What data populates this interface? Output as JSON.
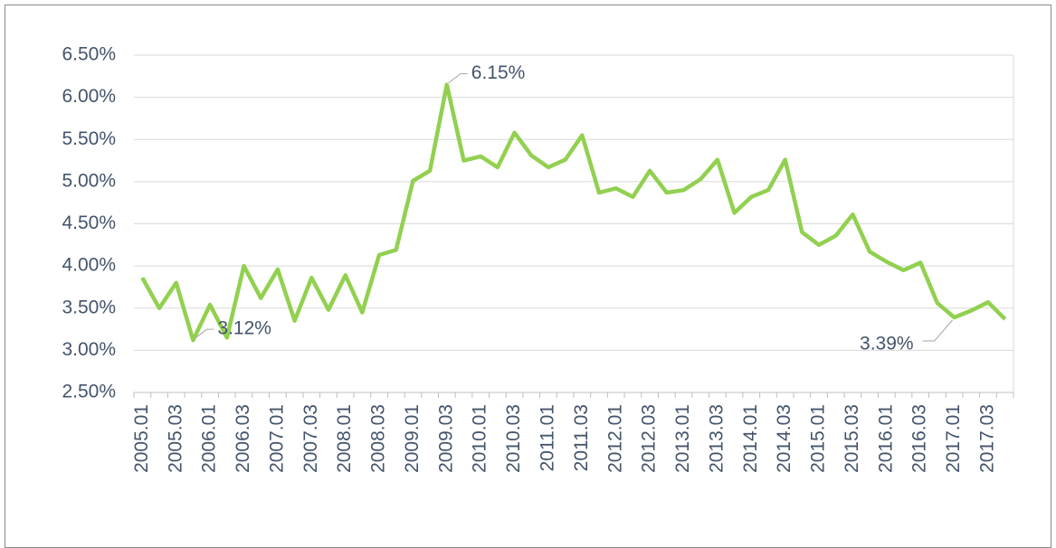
{
  "chart_data": {
    "type": "line",
    "categories": [
      "2005.01",
      null,
      "2005.03",
      null,
      "2006.01",
      null,
      "2006.03",
      null,
      "2007.01",
      null,
      "2007.03",
      null,
      "2008.01",
      null,
      "2008.03",
      null,
      "2009.01",
      null,
      "2009.03",
      null,
      "2010.01",
      null,
      "2010.03",
      null,
      "2011.01",
      null,
      "2011.03",
      null,
      "2012.01",
      null,
      "2012.03",
      null,
      "2013.01",
      null,
      "2013.03",
      null,
      "2014.01",
      null,
      "2014.03",
      null,
      "2015.01",
      null,
      "2015.03",
      null,
      "2016.01",
      null,
      "2016.03",
      null,
      "2017.01",
      null,
      "2017.03",
      null
    ],
    "values": [
      3.86,
      3.5,
      3.8,
      3.12,
      3.54,
      3.15,
      4.0,
      3.62,
      3.96,
      3.35,
      3.86,
      3.48,
      3.89,
      3.45,
      4.13,
      4.19,
      5.01,
      5.13,
      6.15,
      5.25,
      5.3,
      5.17,
      5.58,
      5.31,
      5.17,
      5.26,
      5.55,
      4.87,
      4.92,
      4.82,
      5.13,
      4.87,
      4.9,
      5.03,
      5.26,
      4.63,
      4.82,
      4.9,
      5.26,
      4.4,
      4.25,
      4.36,
      4.61,
      4.17,
      4.05,
      3.95,
      4.04,
      3.56,
      3.39,
      3.47,
      3.57,
      3.37
    ],
    "value_labels": [
      null,
      null,
      null,
      "3.12%",
      null,
      null,
      null,
      null,
      null,
      null,
      null,
      null,
      null,
      null,
      null,
      null,
      null,
      null,
      "6.15%",
      null,
      null,
      null,
      null,
      null,
      null,
      null,
      null,
      null,
      null,
      null,
      null,
      null,
      null,
      null,
      null,
      null,
      null,
      null,
      null,
      null,
      null,
      null,
      null,
      null,
      null,
      null,
      null,
      null,
      "3.39%",
      null,
      null,
      null
    ],
    "color": "#92d050",
    "ylim": [
      2.5,
      6.5
    ],
    "yticks": [
      {
        "value": 2.5,
        "label": "2.50%"
      },
      {
        "value": 3,
        "label": "3.00%"
      },
      {
        "value": 3.5,
        "label": "3.50%"
      },
      {
        "value": 4,
        "label": "4.00%"
      },
      {
        "value": 4.5,
        "label": "4.50%"
      },
      {
        "value": 5,
        "label": "5.00%"
      },
      {
        "value": 5.5,
        "label": "5.50%"
      },
      {
        "value": 6,
        "label": "6.00%"
      },
      {
        "value": 6.5,
        "label": "6.50%"
      }
    ],
    "grid": true
  }
}
